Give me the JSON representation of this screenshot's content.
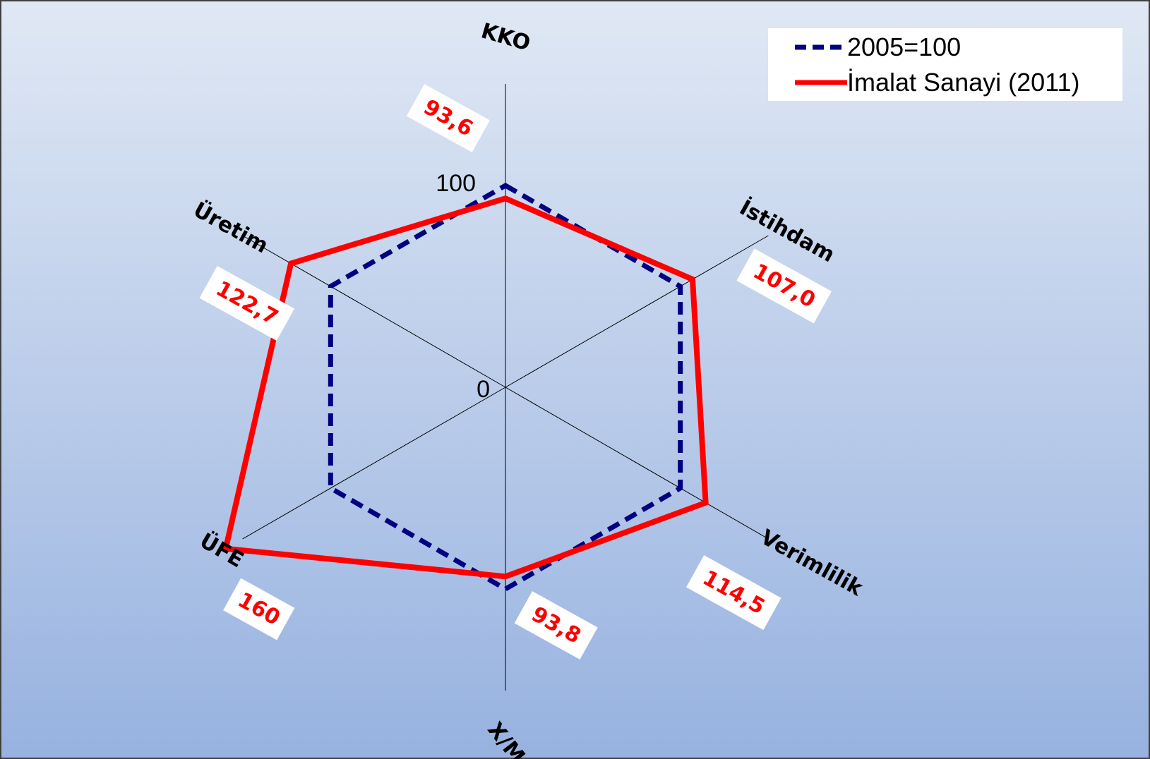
{
  "chart_data": {
    "type": "radar",
    "axes": [
      "KKO",
      "İstihdam",
      "Verimlilik",
      "X/M",
      "ÜFE",
      "Üretim"
    ],
    "scale_ticks": [
      "0",
      "100"
    ],
    "rmax": 160,
    "grid": false,
    "legend_position": "top-right",
    "series": [
      {
        "name": "2005=100",
        "values": [
          100,
          100,
          100,
          100,
          100,
          100
        ],
        "color": "#000080",
        "style": "dashed"
      },
      {
        "name": "İmalat Sanayi (2011)",
        "values": [
          93.6,
          107.0,
          114.5,
          93.8,
          160,
          122.7
        ],
        "labels": [
          "93,6",
          "107,0",
          "114,5",
          "93,8",
          "160",
          "122,7"
        ],
        "color": "#ff0000",
        "style": "solid"
      }
    ]
  },
  "colors": {
    "background_top": "#e0e8f4",
    "background_bottom": "#97b2e0",
    "axis_line": "#000000",
    "label_box": "#ffffff"
  }
}
